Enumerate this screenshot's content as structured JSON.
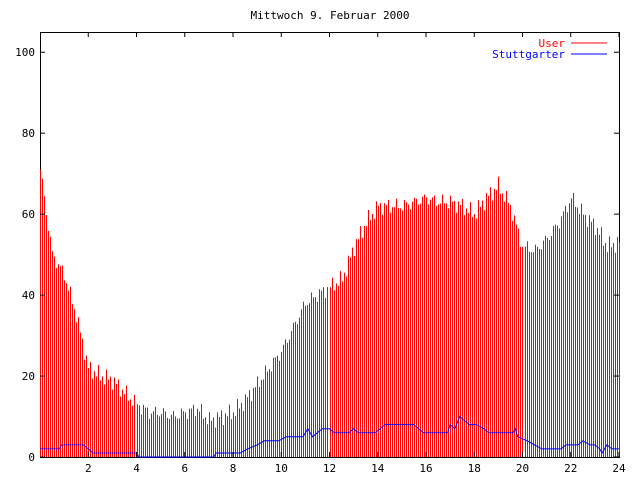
{
  "chart_data": {
    "type": "bar",
    "title": "Mittwoch 9. Februar 2000",
    "xlabel": "",
    "ylabel": "",
    "xlim": [
      0,
      24
    ],
    "ylim": [
      0,
      105
    ],
    "x_ticks": [
      2,
      4,
      6,
      8,
      10,
      12,
      14,
      16,
      18,
      20,
      22,
      24
    ],
    "x_tick_labels": [
      "2",
      "4",
      "6",
      "8",
      "10",
      "12",
      "14",
      "16",
      "18",
      "20",
      "22",
      "24"
    ],
    "y_ticks": [
      0,
      20,
      40,
      60,
      80,
      100
    ],
    "y_tick_labels": [
      "0",
      "20",
      "40",
      "60",
      "80",
      "100"
    ],
    "grid": false,
    "legend": "top-right",
    "series": [
      {
        "name": "User",
        "style": "impulses",
        "color": "#ff0000",
        "points": [
          [
            0.0,
            71
          ],
          [
            0.5,
            50
          ],
          [
            1.0,
            45
          ],
          [
            1.5,
            35
          ],
          [
            2.0,
            22
          ],
          [
            2.5,
            20
          ],
          [
            3.0,
            19
          ],
          [
            3.5,
            16
          ],
          [
            4.0,
            13
          ],
          [
            4.5,
            11
          ],
          [
            5.0,
            11
          ],
          [
            5.5,
            10
          ],
          [
            6.0,
            11
          ],
          [
            6.5,
            12
          ],
          [
            7.0,
            9
          ],
          [
            7.5,
            10
          ],
          [
            8.0,
            11
          ],
          [
            8.5,
            14
          ],
          [
            9.0,
            18
          ],
          [
            9.5,
            22
          ],
          [
            10.0,
            26
          ],
          [
            10.5,
            32
          ],
          [
            11.0,
            38
          ],
          [
            11.5,
            40
          ],
          [
            12.0,
            42
          ],
          [
            12.5,
            44
          ],
          [
            13.0,
            52
          ],
          [
            13.5,
            58
          ],
          [
            14.0,
            62
          ],
          [
            14.5,
            62
          ],
          [
            15.0,
            62
          ],
          [
            15.5,
            63
          ],
          [
            16.0,
            64
          ],
          [
            16.5,
            63
          ],
          [
            17.0,
            63
          ],
          [
            17.5,
            62
          ],
          [
            18.0,
            60
          ],
          [
            18.5,
            64
          ],
          [
            19.0,
            67
          ],
          [
            19.5,
            62
          ],
          [
            20.0,
            52
          ],
          [
            20.5,
            51
          ],
          [
            21.0,
            54
          ],
          [
            21.5,
            58
          ],
          [
            22.0,
            64
          ],
          [
            22.5,
            60
          ],
          [
            23.0,
            57
          ],
          [
            23.5,
            52
          ],
          [
            24.0,
            53
          ]
        ]
      },
      {
        "name": "Stuttgarter",
        "style": "line",
        "color": "#0000ff",
        "points": [
          [
            0.0,
            2
          ],
          [
            0.8,
            2
          ],
          [
            0.9,
            3
          ],
          [
            1.8,
            3
          ],
          [
            2.0,
            2
          ],
          [
            2.2,
            1
          ],
          [
            4.0,
            1
          ],
          [
            4.1,
            0
          ],
          [
            7.2,
            0
          ],
          [
            7.3,
            1
          ],
          [
            8.3,
            1
          ],
          [
            8.6,
            2
          ],
          [
            9.0,
            3
          ],
          [
            9.3,
            4
          ],
          [
            9.9,
            4
          ],
          [
            10.2,
            5
          ],
          [
            10.9,
            5
          ],
          [
            11.1,
            7
          ],
          [
            11.3,
            5
          ],
          [
            11.5,
            6
          ],
          [
            11.7,
            7
          ],
          [
            12.0,
            7
          ],
          [
            12.2,
            6
          ],
          [
            12.8,
            6
          ],
          [
            13.0,
            7
          ],
          [
            13.2,
            6
          ],
          [
            13.9,
            6
          ],
          [
            14.1,
            7
          ],
          [
            14.3,
            8
          ],
          [
            15.5,
            8
          ],
          [
            15.7,
            7
          ],
          [
            15.9,
            6
          ],
          [
            16.9,
            6
          ],
          [
            17.0,
            8
          ],
          [
            17.2,
            7
          ],
          [
            17.4,
            10
          ],
          [
            17.6,
            9
          ],
          [
            17.8,
            8
          ],
          [
            18.1,
            8
          ],
          [
            18.4,
            7
          ],
          [
            18.6,
            6
          ],
          [
            19.6,
            6
          ],
          [
            19.7,
            7
          ],
          [
            19.8,
            5
          ],
          [
            20.2,
            4
          ],
          [
            20.5,
            3
          ],
          [
            20.8,
            2
          ],
          [
            21.6,
            2
          ],
          [
            21.8,
            3
          ],
          [
            22.3,
            3
          ],
          [
            22.5,
            4
          ],
          [
            22.8,
            3
          ],
          [
            23.0,
            3
          ],
          [
            23.2,
            2
          ],
          [
            23.3,
            1
          ],
          [
            23.5,
            3
          ],
          [
            23.7,
            2
          ],
          [
            24.0,
            2
          ]
        ]
      }
    ]
  }
}
